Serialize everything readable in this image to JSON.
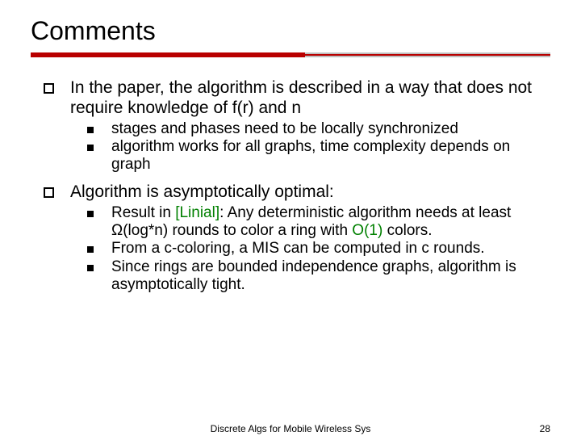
{
  "title": "Comments",
  "bullets": {
    "b1": "In the paper, the algorithm is described in a way that does not require knowledge of f(r) and n",
    "b1a": "stages and phases need to be locally synchronized",
    "b1b": "algorithm works for all graphs, time complexity depends on graph",
    "b2": "Algorithm is asymptotically optimal:",
    "b2a_pre": "Result in ",
    "b2a_ref": "[Linial]",
    "b2a_mid": ": Any deterministic algorithm needs at least Ω(log*n) rounds to color a ring with ",
    "b2a_o1": "O(1)",
    "b2a_post": " colors.",
    "b2b": "From a c-coloring, a MIS can be computed in c rounds.",
    "b2c": "Since rings are bounded independence graphs, algorithm is asymptotically tight."
  },
  "footer": {
    "center": "Discrete Algs for Mobile Wireless Sys",
    "page": "28"
  },
  "colors": {
    "accent": "#b90000",
    "ref": "#008000"
  }
}
